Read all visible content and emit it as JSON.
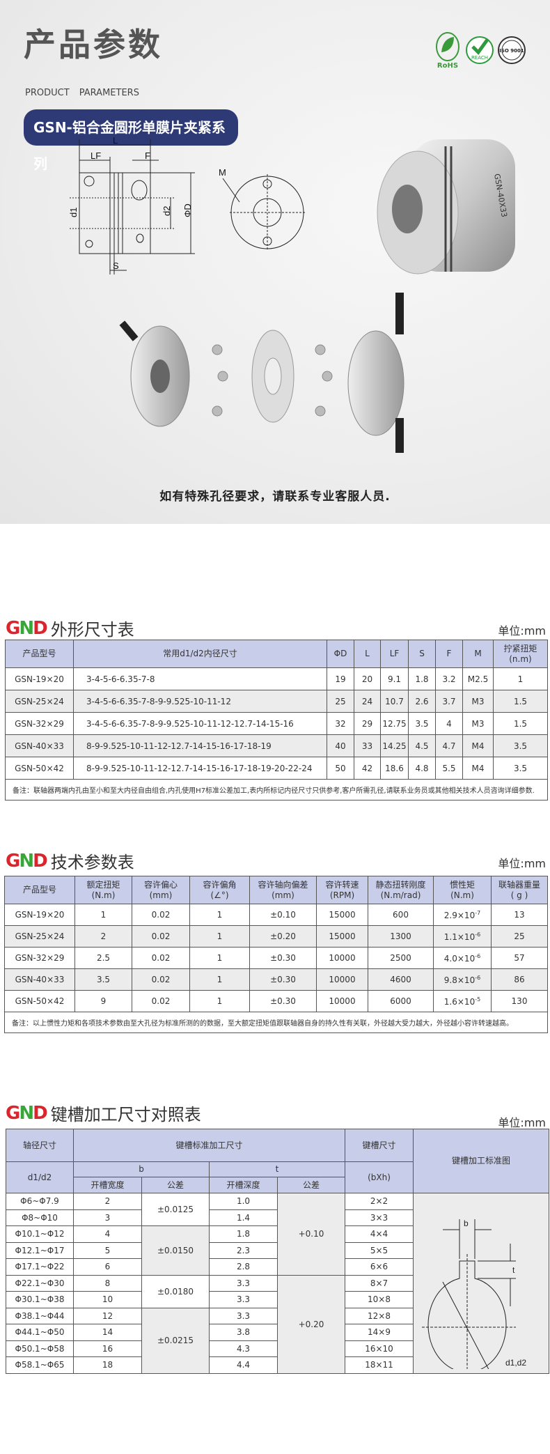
{
  "header": {
    "title": "产品参数",
    "subtitle": "PRODUCT PARAMETERS",
    "series_badge": "GSN-铝合金圆形单膜片夹紧系列",
    "certs": [
      {
        "icon": "rohs-icon",
        "label": "RoHS"
      },
      {
        "icon": "reach-icon",
        "label": "REACH"
      },
      {
        "icon": "iso-icon",
        "label": "ISO 9001"
      }
    ]
  },
  "drawing": {
    "labels": {
      "L": "L",
      "LF": "LF",
      "F": "F",
      "S": "S",
      "d1": "d1",
      "d2": "d2",
      "D": "ΦD",
      "M": "M"
    },
    "product_marking": "GSN-40X33"
  },
  "caption": "如有特殊孔径要求，请联系专业客服人员.",
  "brand": {
    "logo": "GND"
  },
  "unit": "单位:mm",
  "dimensions": {
    "title": "外形尺寸表",
    "headers": [
      "产品型号",
      "常用d1/d2内径尺寸",
      "ΦD",
      "L",
      "LF",
      "S",
      "F",
      "M",
      "拧紧扭矩\n(n.m)"
    ],
    "rows": [
      [
        "GSN-19×20",
        "3-4-5-6-6.35-7-8",
        "19",
        "20",
        "9.1",
        "1.8",
        "3.2",
        "M2.5",
        "1"
      ],
      [
        "GSN-25×24",
        "3-4-5-6-6.35-7-8-9-9.525-10-11-12",
        "25",
        "24",
        "10.7",
        "2.6",
        "3.7",
        "M3",
        "1.5"
      ],
      [
        "GSN-32×29",
        "3-4-5-6-6.35-7-8-9-9.525-10-11-12-12.7-14-15-16",
        "32",
        "29",
        "12.75",
        "3.5",
        "4",
        "M3",
        "1.5"
      ],
      [
        "GSN-40×33",
        "8-9-9.525-10-11-12-12.7-14-15-16-17-18-19",
        "40",
        "33",
        "14.25",
        "4.5",
        "4.7",
        "M4",
        "3.5"
      ],
      [
        "GSN-50×42",
        "8-9-9.525-10-11-12-12.7-14-15-16-17-18-19-20-22-24",
        "50",
        "42",
        "18.6",
        "4.8",
        "5.5",
        "M4",
        "3.5"
      ]
    ],
    "note": "备注：联轴器两端内孔由至小和至大内径自由组合,内孔使用H7标准公差加工,表内所标记内径尺寸只供参考,客户所需孔径,请联系业务员或其他相关技术人员咨询详细参数."
  },
  "technical": {
    "title": "技术参数表",
    "headers": [
      [
        "产品型号",
        ""
      ],
      [
        "额定扭矩",
        "(N.m)"
      ],
      [
        "容许偏心",
        "(mm)"
      ],
      [
        "容许偏角",
        "(∠°)"
      ],
      [
        "容许轴向偏差",
        "(mm)"
      ],
      [
        "容许转速",
        "(RPM)"
      ],
      [
        "静态扭转刚度",
        "(N.m/rad)"
      ],
      [
        "惯性矩",
        "(N.m)"
      ],
      [
        "联轴器重量",
        "( g )"
      ]
    ],
    "rows": [
      {
        "model": "GSN-19×20",
        "torque": "1",
        "eccentric": "0.02",
        "angle": "1",
        "axial": "±0.10",
        "speed": "15000",
        "stiffness": "600",
        "inertia": "2.9×10",
        "inertia_exp": "-7",
        "weight": "13"
      },
      {
        "model": "GSN-25×24",
        "torque": "2",
        "eccentric": "0.02",
        "angle": "1",
        "axial": "±0.20",
        "speed": "15000",
        "stiffness": "1300",
        "inertia": "1.1×10",
        "inertia_exp": "-6",
        "weight": "25"
      },
      {
        "model": "GSN-32×29",
        "torque": "2.5",
        "eccentric": "0.02",
        "angle": "1",
        "axial": "±0.30",
        "speed": "10000",
        "stiffness": "2500",
        "inertia": "4.0×10",
        "inertia_exp": "-6",
        "weight": "57"
      },
      {
        "model": "GSN-40×33",
        "torque": "3.5",
        "eccentric": "0.02",
        "angle": "1",
        "axial": "±0.30",
        "speed": "10000",
        "stiffness": "4600",
        "inertia": "9.8×10",
        "inertia_exp": "-6",
        "weight": "86"
      },
      {
        "model": "GSN-50×42",
        "torque": "9",
        "eccentric": "0.02",
        "angle": "1",
        "axial": "±0.30",
        "speed": "10000",
        "stiffness": "6000",
        "inertia": "1.6×10",
        "inertia_exp": "-5",
        "weight": "130"
      }
    ],
    "note": "备注：以上惯性力矩和各项技术参数由至大孔径为标准所测的的数据，至大额定扭矩值跟联轴器自身的持久性有关联，外径越大受力越大，外径越小容许转速越高。"
  },
  "keyway": {
    "title": "键槽加工尺寸对照表",
    "headers": {
      "shaft": "轴径尺寸",
      "std": "键槽标准加工尺寸",
      "key": "键槽尺寸",
      "diagram": "键槽加工标准图",
      "d": "d1/d2",
      "b": "b",
      "t": "t",
      "width": "开槽宽度",
      "tol": "公差",
      "depth": "开槽深度",
      "tol2": "公差",
      "bxh": "(bXh)"
    },
    "rows": [
      {
        "d": "Φ6~Φ7.9",
        "b": "2",
        "t": "1.0",
        "key": "2×2"
      },
      {
        "d": "Φ8~Φ10",
        "b": "3",
        "t": "1.4",
        "key": "3×3"
      },
      {
        "d": "Φ10.1~Φ12",
        "b": "4",
        "t": "1.8",
        "key": "4×4"
      },
      {
        "d": "Φ12.1~Φ17",
        "b": "5",
        "t": "2.3",
        "key": "5×5"
      },
      {
        "d": "Φ17.1~Φ22",
        "b": "6",
        "t": "2.8",
        "key": "6×6"
      },
      {
        "d": "Φ22.1~Φ30",
        "b": "8",
        "t": "3.3",
        "key": "8×7"
      },
      {
        "d": "Φ30.1~Φ38",
        "b": "10",
        "t": "3.3",
        "key": "10×8"
      },
      {
        "d": "Φ38.1~Φ44",
        "b": "12",
        "t": "3.3",
        "key": "12×8"
      },
      {
        "d": "Φ44.1~Φ50",
        "b": "14",
        "t": "3.8",
        "key": "14×9"
      },
      {
        "d": "Φ50.1~Φ58",
        "b": "16",
        "t": "4.3",
        "key": "16×10"
      },
      {
        "d": "Φ58.1~Φ65",
        "b": "18",
        "t": "4.4",
        "key": "18×11"
      }
    ],
    "b_tol": [
      {
        "value": "±0.0125",
        "span": 2
      },
      {
        "value": "±0.0150",
        "span": 3
      },
      {
        "value": "±0.0180",
        "span": 2
      },
      {
        "value": "±0.0215",
        "span": 4
      }
    ],
    "t_tol": [
      {
        "value": "+0.10",
        "span": 5
      },
      {
        "value": "+0.20",
        "span": 6
      }
    ],
    "diagram_labels": {
      "b": "b",
      "t": "t",
      "d": "d1,d2"
    }
  },
  "colors": {
    "badge": "#2d3a76",
    "header_bg": "#c8cdea",
    "logo_red": "#d9262c",
    "logo_green": "#3aa63a"
  }
}
